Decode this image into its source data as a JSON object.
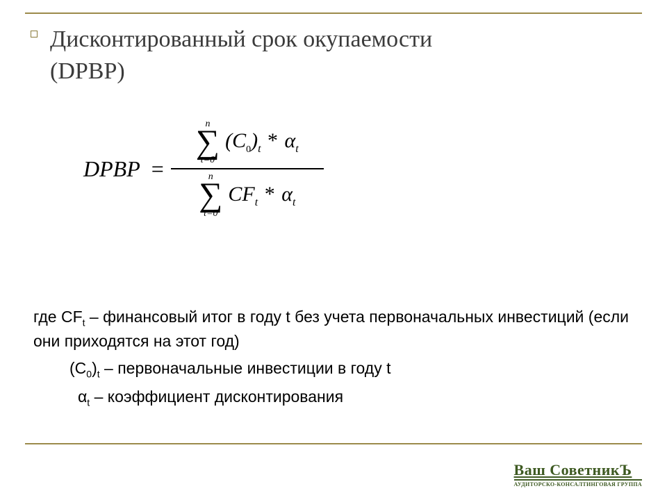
{
  "colors": {
    "rule": "#9b8a4a",
    "title": "#3b3b3b",
    "body": "#000000",
    "logo": "#3e5a22",
    "background": "#ffffff"
  },
  "typography": {
    "title_font": "Garamond / Times New Roman serif",
    "title_size_pt": 26,
    "body_font": "Arial, sans-serif",
    "body_size_pt": 17,
    "formula_font": "Times New Roman, italic",
    "formula_size_pt": 24
  },
  "title": {
    "line1": "Дисконтированный срок окупаемости",
    "line2": "(DPBP)"
  },
  "formula": {
    "lhs": "DPBP",
    "eq": "=",
    "sum_upper": "n",
    "sum_lower": "t=0",
    "num_term_left": "(C",
    "num_term_sub0": "0",
    "num_term_close": ")",
    "num_term_subt": "t",
    "star": "*",
    "alpha": "α",
    "alpha_sub": "t",
    "den_term": "CF",
    "den_term_sub": "t"
  },
  "defs": {
    "where": "где  ",
    "cf_sym": "CF",
    "cf_sub": "t",
    "cf_text": " – финансовый итог в году t без учета первоначальных инвестиций (если они приходятся на этот год)",
    "c0_open": "(C",
    "c0_sub0": "0",
    "c0_close": ")",
    "c0_subt": "t",
    "c0_text": " – первоначальные инвестиции в году t",
    "alpha_sym": "α",
    "alpha_sub": "t",
    "alpha_text": "  –  коэффициент дисконтирования"
  },
  "logo": {
    "main": "Ваш СоветникЪ",
    "tag": "АУДИТОРСКО-КОНСАЛТИНГОВАЯ ГРУППА"
  }
}
